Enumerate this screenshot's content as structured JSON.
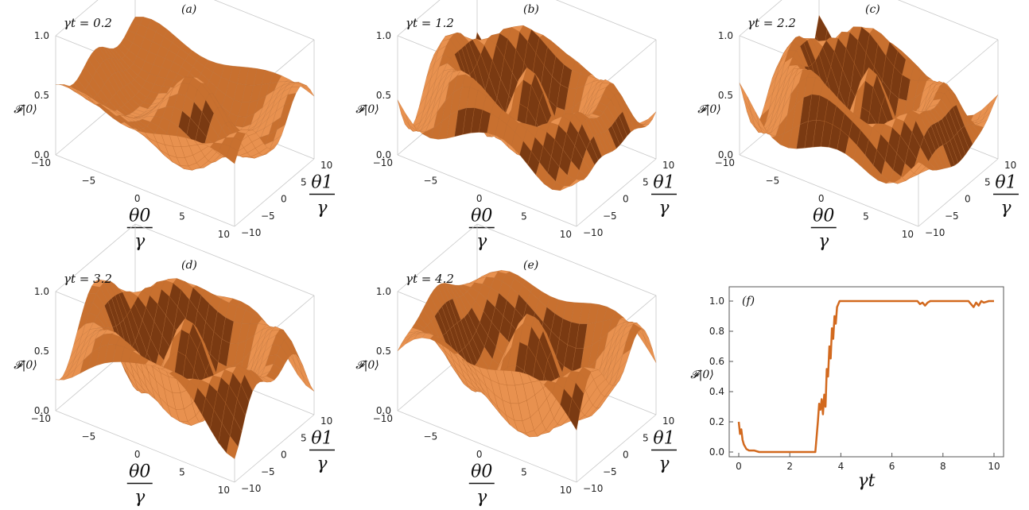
{
  "colors": {
    "surface_light": "#e8914f",
    "surface_mid": "#c8702f",
    "surface_dark": "#7a3a12",
    "line": "#d2691e",
    "frame": "#c8c8c8"
  },
  "chart_data": [
    {
      "panel": "(a)",
      "title": "γt = 0.2",
      "type": "surface",
      "zlabel": "𝓕|0⟩",
      "ticks_z": [
        "0.0",
        "0.5",
        "1.0"
      ],
      "ticks_x": [
        "−10",
        "−5",
        "0",
        "5",
        "10"
      ],
      "ticks_y": [
        "−10",
        "−5",
        "0",
        "5",
        "10"
      ],
      "xlabel_num": "θ0",
      "xlabel_den": "γ",
      "ylabel_num": "θ1",
      "ylabel_den": "γ",
      "zlim": [
        0,
        1
      ],
      "xlim": [
        -10,
        10
      ],
      "ylim": [
        -10,
        10
      ]
    },
    {
      "panel": "(b)",
      "title": "γt = 1.2",
      "type": "surface",
      "zlabel": "𝓕|0⟩",
      "ticks_z": [
        "0.0",
        "0.5",
        "1.0"
      ],
      "ticks_x": [
        "−10",
        "−5",
        "0",
        "5",
        "10"
      ],
      "ticks_y": [
        "−10",
        "−5",
        "0",
        "5",
        "10"
      ],
      "xlabel_num": "θ0",
      "xlabel_den": "γ",
      "ylabel_num": "θ1",
      "ylabel_den": "γ",
      "zlim": [
        0,
        1
      ],
      "xlim": [
        -10,
        10
      ],
      "ylim": [
        -10,
        10
      ]
    },
    {
      "panel": "(c)",
      "title": "γt = 2.2",
      "type": "surface",
      "zlabel": "𝓕|0⟩",
      "ticks_z": [
        "0.0",
        "0.5",
        "1.0"
      ],
      "ticks_x": [
        "−10",
        "−5",
        "0",
        "5",
        "10"
      ],
      "ticks_y": [
        "−10",
        "−5",
        "0",
        "5",
        "10"
      ],
      "xlabel_num": "θ0",
      "xlabel_den": "γ",
      "ylabel_num": "θ1",
      "ylabel_den": "γ",
      "zlim": [
        0,
        1
      ],
      "xlim": [
        -10,
        10
      ],
      "ylim": [
        -10,
        10
      ]
    },
    {
      "panel": "(d)",
      "title": "γt = 3.2",
      "type": "surface",
      "zlabel": "𝓕|0⟩",
      "ticks_z": [
        "0.0",
        "0.5",
        "1.0"
      ],
      "ticks_x": [
        "−10",
        "−5",
        "0",
        "5",
        "10"
      ],
      "ticks_y": [
        "−10",
        "−5",
        "0",
        "5",
        "10"
      ],
      "xlabel_num": "θ0",
      "xlabel_den": "γ",
      "ylabel_num": "θ1",
      "ylabel_den": "γ",
      "zlim": [
        0,
        1
      ],
      "xlim": [
        -10,
        10
      ],
      "ylim": [
        -10,
        10
      ]
    },
    {
      "panel": "(e)",
      "title": "γt = 4.2",
      "type": "surface",
      "zlabel": "𝓕|0⟩",
      "ticks_z": [
        "0.0",
        "0.5",
        "1.0"
      ],
      "ticks_x": [
        "−10",
        "−5",
        "0",
        "5",
        "10"
      ],
      "ticks_y": [
        "−10",
        "−5",
        "0",
        "5",
        "10"
      ],
      "xlabel_num": "θ0",
      "xlabel_den": "γ",
      "ylabel_num": "θ1",
      "ylabel_den": "γ",
      "zlim": [
        0,
        1
      ],
      "xlim": [
        -10,
        10
      ],
      "ylim": [
        -10,
        10
      ]
    },
    {
      "panel": "(f)",
      "title": "",
      "type": "line",
      "xlabel": "γt",
      "ylabel": "𝓕|0⟩",
      "xlim": [
        0,
        10
      ],
      "ylim": [
        0,
        1
      ],
      "ticks_x": [
        "0",
        "2",
        "4",
        "6",
        "8",
        "10"
      ],
      "ticks_y": [
        "0.0",
        "0.2",
        "0.4",
        "0.6",
        "0.8",
        "1.0"
      ],
      "series": [
        {
          "x": [
            0,
            0.05,
            0.1,
            0.15,
            0.2,
            0.3,
            0.4,
            0.6,
            0.8,
            1.0,
            1.5,
            2.0,
            2.5,
            3.0,
            3.05,
            3.1,
            3.15,
            3.2,
            3.25,
            3.3,
            3.35,
            3.4,
            3.45,
            3.5,
            3.55,
            3.6,
            3.65,
            3.7,
            3.75,
            3.8,
            3.85,
            3.9,
            3.95,
            4.0,
            4.5,
            5.0,
            5.5,
            6.0,
            6.5,
            7.0,
            7.1,
            7.2,
            7.3,
            7.4,
            7.5,
            8.0,
            8.5,
            9.0,
            9.1,
            9.2,
            9.3,
            9.4,
            9.5,
            9.6,
            9.8,
            10.0
          ],
          "y": [
            0.2,
            0.12,
            0.15,
            0.08,
            0.05,
            0.02,
            0.01,
            0.01,
            0.0,
            0.0,
            0.0,
            0.0,
            0.0,
            0.0,
            0.1,
            0.2,
            0.32,
            0.28,
            0.35,
            0.25,
            0.38,
            0.3,
            0.55,
            0.5,
            0.7,
            0.62,
            0.82,
            0.75,
            0.9,
            0.85,
            0.96,
            0.98,
            1.0,
            1.0,
            1.0,
            1.0,
            1.0,
            1.0,
            1.0,
            1.0,
            0.98,
            0.99,
            0.97,
            0.99,
            1.0,
            1.0,
            1.0,
            1.0,
            0.98,
            0.96,
            0.99,
            0.97,
            1.0,
            0.99,
            1.0,
            1.0
          ]
        }
      ]
    }
  ]
}
